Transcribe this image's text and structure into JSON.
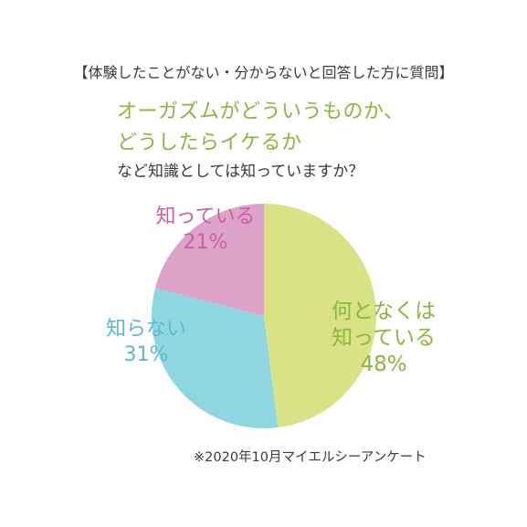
{
  "header": "【体験したことがない・分からないと回答した方に質問】",
  "question": {
    "line1": "オーガズムがどういうものか、",
    "line2": "どうしたらイケるか",
    "line3": "など知識としては知っていますか？"
  },
  "chart_data": {
    "type": "pie",
    "slices": [
      {
        "label": "何となくは知っている",
        "label_lines": [
          "何となくは",
          "知っている"
        ],
        "value": 48,
        "value_text": "48%",
        "color": "#d9e285",
        "text_color": "#8bb73a"
      },
      {
        "label": "知らない",
        "label_lines": [
          "知らない"
        ],
        "value": 31,
        "value_text": "31%",
        "color": "#8ed7e1",
        "text_color": "#5bb9d2"
      },
      {
        "label": "知っている",
        "label_lines": [
          "知っている"
        ],
        "value": 21,
        "value_text": "21%",
        "color": "#dea3c9",
        "text_color": "#cc5ea3"
      }
    ]
  },
  "footnote": "※2020年10月マイエルシーアンケート"
}
